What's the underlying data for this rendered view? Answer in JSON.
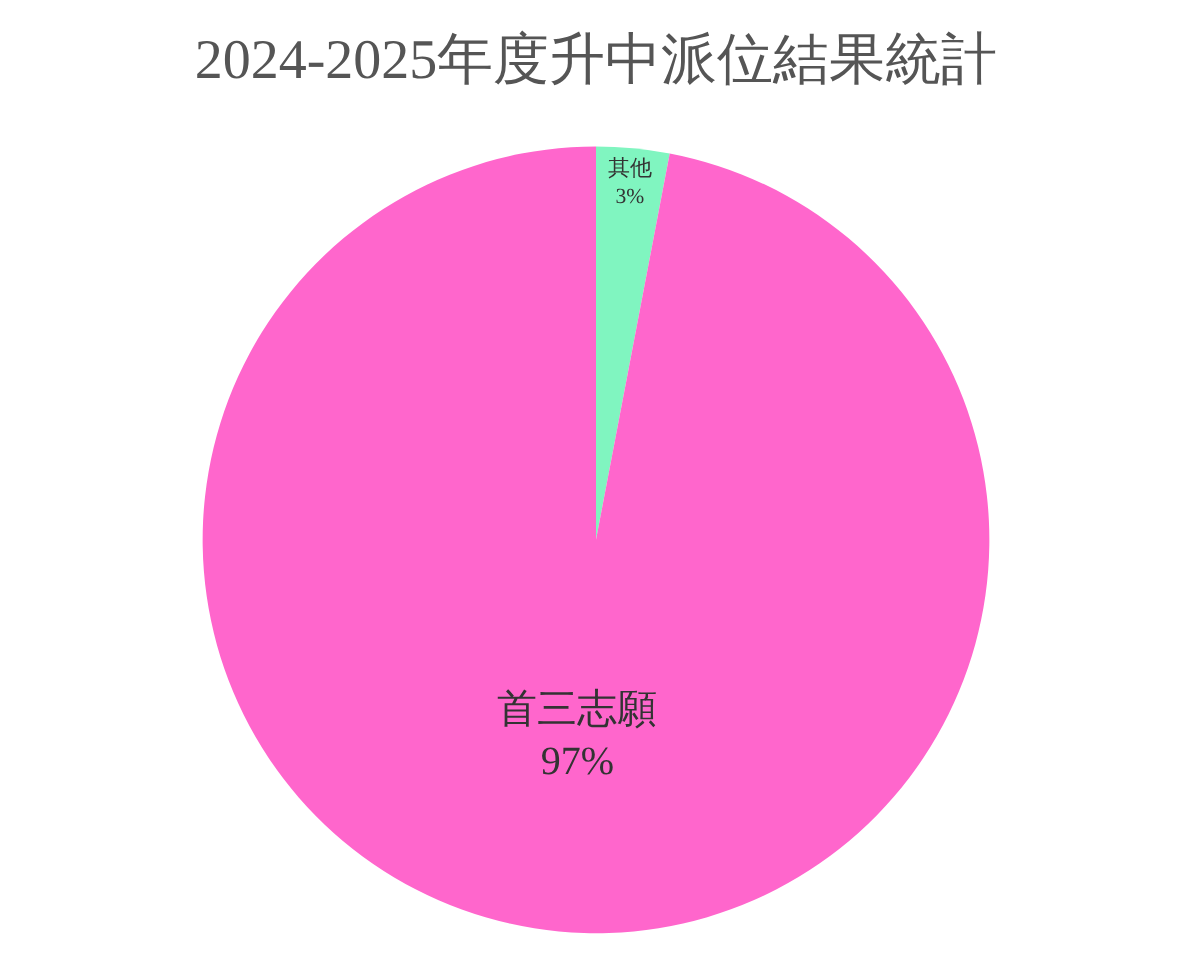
{
  "chart_data": {
    "type": "pie",
    "title": "2024-2025年度升中派位結果統計",
    "categories": [
      "其他",
      "首三志願"
    ],
    "values": [
      3,
      97
    ],
    "value_labels": [
      "3%",
      "97%"
    ],
    "colors": [
      "#80f5c0",
      "#ff66cc"
    ],
    "legend": false
  }
}
